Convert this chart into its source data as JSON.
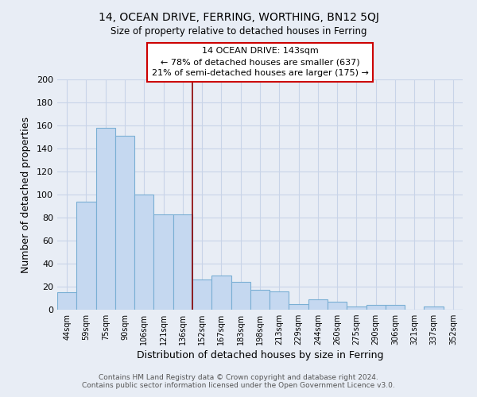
{
  "title": "14, OCEAN DRIVE, FERRING, WORTHING, BN12 5QJ",
  "subtitle": "Size of property relative to detached houses in Ferring",
  "xlabel": "Distribution of detached houses by size in Ferring",
  "ylabel": "Number of detached properties",
  "categories": [
    "44sqm",
    "59sqm",
    "75sqm",
    "90sqm",
    "106sqm",
    "121sqm",
    "136sqm",
    "152sqm",
    "167sqm",
    "183sqm",
    "198sqm",
    "213sqm",
    "229sqm",
    "244sqm",
    "260sqm",
    "275sqm",
    "290sqm",
    "306sqm",
    "321sqm",
    "337sqm",
    "352sqm"
  ],
  "values": [
    15,
    94,
    158,
    151,
    100,
    83,
    83,
    26,
    30,
    24,
    17,
    16,
    5,
    9,
    7,
    3,
    4,
    4,
    0,
    3,
    0
  ],
  "bar_color": "#c5d8f0",
  "bar_edge_color": "#7aafd4",
  "vline_x_index": 6.5,
  "vline_color": "#8b0000",
  "annotation_title": "14 OCEAN DRIVE: 143sqm",
  "annotation_line1": "← 78% of detached houses are smaller (637)",
  "annotation_line2": "21% of semi-detached houses are larger (175) →",
  "annotation_box_edge": "#cc0000",
  "ylim": [
    0,
    200
  ],
  "yticks": [
    0,
    20,
    40,
    60,
    80,
    100,
    120,
    140,
    160,
    180,
    200
  ],
  "grid_color": "#c8d4e8",
  "bg_color": "#e8edf5",
  "footer1": "Contains HM Land Registry data © Crown copyright and database right 2024.",
  "footer2": "Contains public sector information licensed under the Open Government Licence v3.0."
}
